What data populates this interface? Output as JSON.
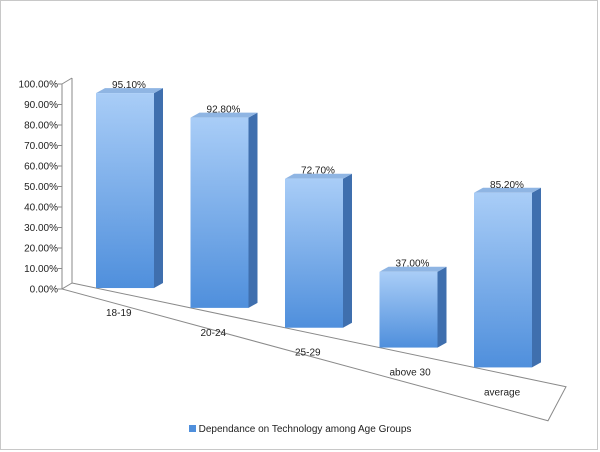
{
  "chart_data": {
    "type": "bar",
    "title": "",
    "xlabel": "",
    "ylabel": "",
    "categories": [
      "18-19",
      "20-24",
      "25-29",
      "above 30",
      "average"
    ],
    "series": [
      {
        "name": "Dependance on Technology among Age Groups",
        "values": [
          95.1,
          92.8,
          72.7,
          37.0,
          85.2
        ],
        "labels": [
          "95.10%",
          "92.80%",
          "72.70%",
          "37.00%",
          "85.20%"
        ]
      }
    ],
    "ylim": [
      0,
      100
    ],
    "yticks": [
      0,
      10,
      20,
      30,
      40,
      50,
      60,
      70,
      80,
      90,
      100
    ],
    "ytick_labels": [
      "0.00%",
      "10.00%",
      "20.00%",
      "30.00%",
      "40.00%",
      "50.00%",
      "60.00%",
      "70.00%",
      "80.00%",
      "90.00%",
      "100.00%"
    ],
    "grid": false,
    "legend": "bottom",
    "style": "3d-column",
    "colors": {
      "bar_light": "#a9cdf7",
      "bar_dark": "#4f8fdc",
      "bar_side": "#3f6fae",
      "bar_top": "#8fb5e3",
      "axis": "#8a8a8a"
    }
  }
}
